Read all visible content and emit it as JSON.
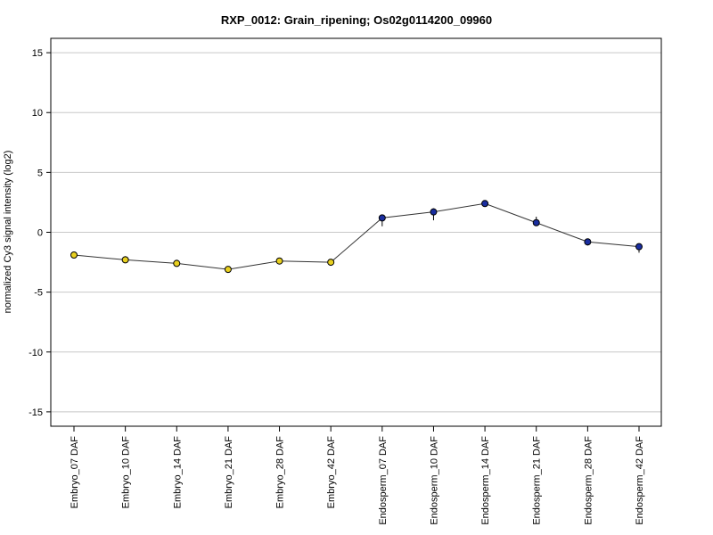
{
  "chart_data": {
    "type": "line",
    "title": "RXP_0012: Grain_ripening; Os02g0114200_09960",
    "xlabel": "",
    "ylabel": "normalized Cy3 signal intensity (log2)",
    "ylim": [
      -16.2,
      16.2
    ],
    "yticks": [
      -15,
      -10,
      -5,
      0,
      5,
      10,
      15
    ],
    "grid": true,
    "categories": [
      "Embryo_07 DAF",
      "Embryo_10 DAF",
      "Embryo_14 DAF",
      "Embryo_21 DAF",
      "Embryo_28 DAF",
      "Embryo_42 DAF",
      "Endosperm_07 DAF",
      "Endosperm_10 DAF",
      "Endosperm_14 DAF",
      "Endosperm_21 DAF",
      "Endosperm_28 DAF",
      "Endosperm_42 DAF"
    ],
    "series": [
      {
        "values": [
          -1.9,
          -2.3,
          -2.6,
          -3.1,
          -2.4,
          -2.5,
          1.2,
          1.7,
          2.4,
          0.8,
          -0.8,
          -1.2
        ],
        "err_low": [
          -1.9,
          -2.5,
          -2.8,
          -3.2,
          -2.5,
          -2.6,
          0.5,
          1.0,
          2.4,
          0.8,
          -1.1,
          -1.7
        ],
        "err_high": [
          -1.7,
          -2.0,
          -2.3,
          -2.9,
          -2.3,
          -2.4,
          1.4,
          2.0,
          2.6,
          1.3,
          -0.6,
          -1.0
        ]
      }
    ],
    "marker_colors": [
      "#e8d020",
      "#e8d020",
      "#e8d020",
      "#e8d020",
      "#e8d020",
      "#e8d020",
      "#1a2ea0",
      "#1a2ea0",
      "#1a2ea0",
      "#1a2ea0",
      "#1a2ea0",
      "#1a2ea0"
    ],
    "line_color": "#333333",
    "grid_color": "#c8c8c8"
  }
}
